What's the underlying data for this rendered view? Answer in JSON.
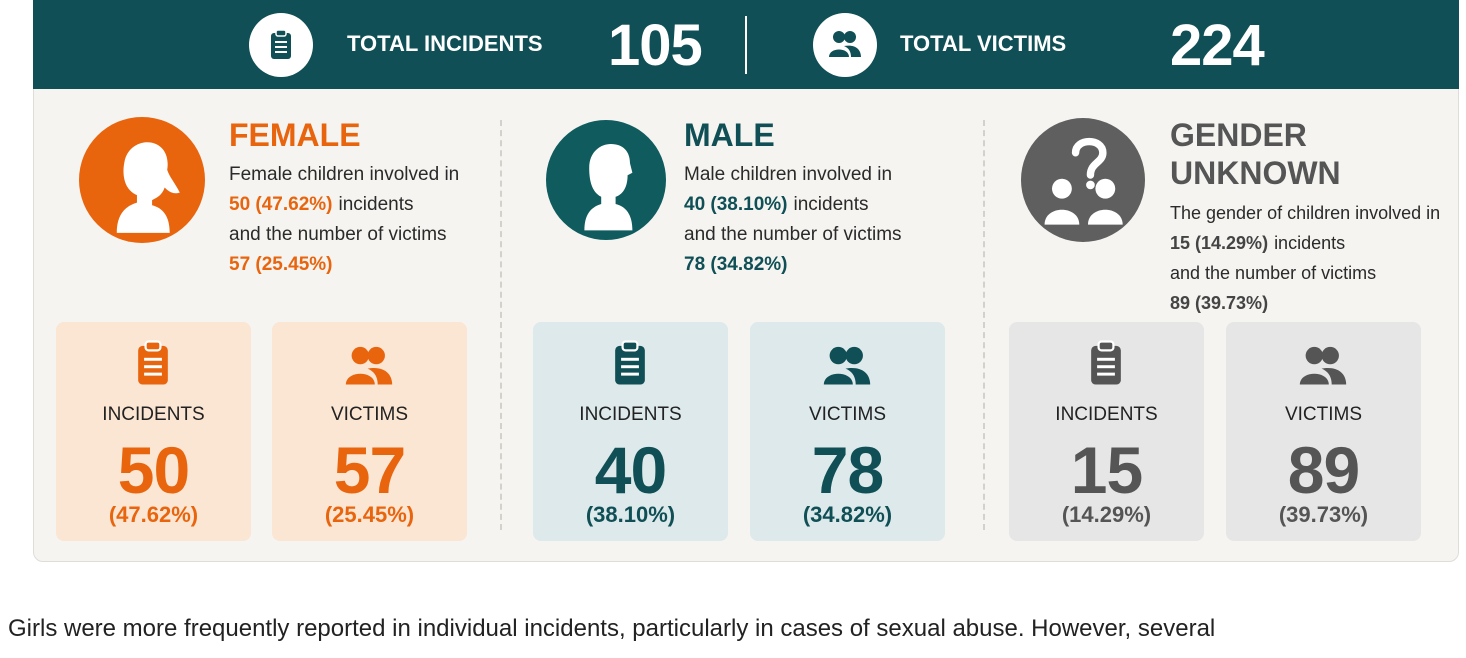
{
  "header": {
    "total_incidents": {
      "label": "TOTAL INCIDENTS",
      "value": "105"
    },
    "total_victims": {
      "label": "TOTAL VICTIMS",
      "value": "224"
    }
  },
  "groups": [
    {
      "title": [
        "FEMALE"
      ],
      "description": {
        "lead": "Female children involved in",
        "incidents": "50 (47.62%)",
        "incidents_text": "incidents",
        "victims_text": "and the number of victims",
        "victims": "57 (25.45%)"
      },
      "cards": [
        {
          "label": "INCIDENTS",
          "count": "50",
          "percent": "(47.62%)"
        },
        {
          "label": "VICTIMS",
          "count": "57",
          "percent": "(25.45%)"
        }
      ]
    },
    {
      "title": [
        "MALE"
      ],
      "description": {
        "lead": "Male children involved in",
        "incidents": "40 (38.10%)",
        "incidents_text": "incidents",
        "victims_text": "and the number of victims",
        "victims": "78 (34.82%)"
      },
      "cards": [
        {
          "label": "INCIDENTS",
          "count": "40",
          "percent": "(38.10%)"
        },
        {
          "label": "VICTIMS",
          "count": "78",
          "percent": "(34.82%)"
        }
      ]
    },
    {
      "title": [
        "GENDER",
        "UNKNOWN"
      ],
      "description": {
        "lead": "The gender of children involved in",
        "incidents": "15 (14.29%)",
        "incidents_text": "incidents",
        "victims_text": "and the number of victims",
        "victims": "89 (39.73%)"
      },
      "cards": [
        {
          "label": "INCIDENTS",
          "count": "15",
          "percent": "(14.29%)"
        },
        {
          "label": "VICTIMS",
          "count": "89",
          "percent": "(39.73%)"
        }
      ]
    }
  ],
  "body_text": "Girls were more frequently reported in individual incidents, particularly in cases of sexual abuse. However, several"
}
